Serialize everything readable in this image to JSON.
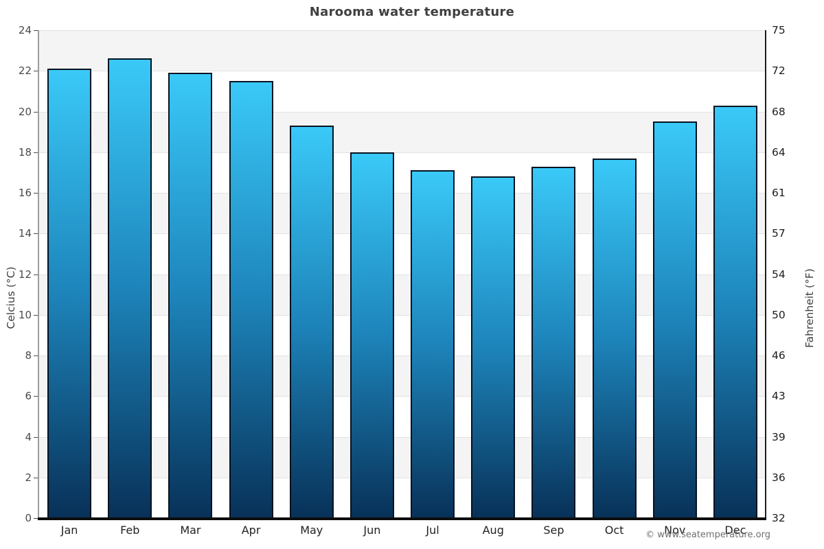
{
  "page": {
    "title": "Narooma water temperature",
    "copyright": "© www.seatemperature.org"
  },
  "chart_data": {
    "type": "bar",
    "title": "Narooma water temperature",
    "categories": [
      "Jan",
      "Feb",
      "Mar",
      "Apr",
      "May",
      "Jun",
      "Jul",
      "Aug",
      "Sep",
      "Oct",
      "Nov",
      "Dec"
    ],
    "values": [
      22.1,
      22.6,
      21.9,
      21.5,
      19.3,
      18.0,
      17.1,
      16.8,
      17.3,
      17.7,
      19.5,
      20.3
    ],
    "unit": "°C",
    "ylabel_left": "Celcius (°C)",
    "ylabel_right": "Fahrenheit (°F)",
    "xlabel": "",
    "ylim": [
      0,
      24
    ],
    "yticks_left": [
      0,
      2,
      4,
      6,
      8,
      10,
      12,
      14,
      16,
      18,
      20,
      22,
      24
    ],
    "yticks_right": [
      32,
      36,
      39,
      43,
      46,
      50,
      54,
      57,
      61,
      64,
      68,
      72,
      75
    ],
    "legend": "none",
    "grid": "alternating horizontal bands every 2°C",
    "colors": {
      "bar_gradient_top": "#3ac9f8",
      "bar_gradient_mid": "#1d84ba",
      "bar_gradient_bottom": "#083158",
      "bar_border": "#06121f",
      "band_gray": "#f4f4f4",
      "band_white": "#ffffff",
      "gridline": "#e2e2e2",
      "title_text": "#404040",
      "copyright_text": "#6e6e6e"
    }
  }
}
